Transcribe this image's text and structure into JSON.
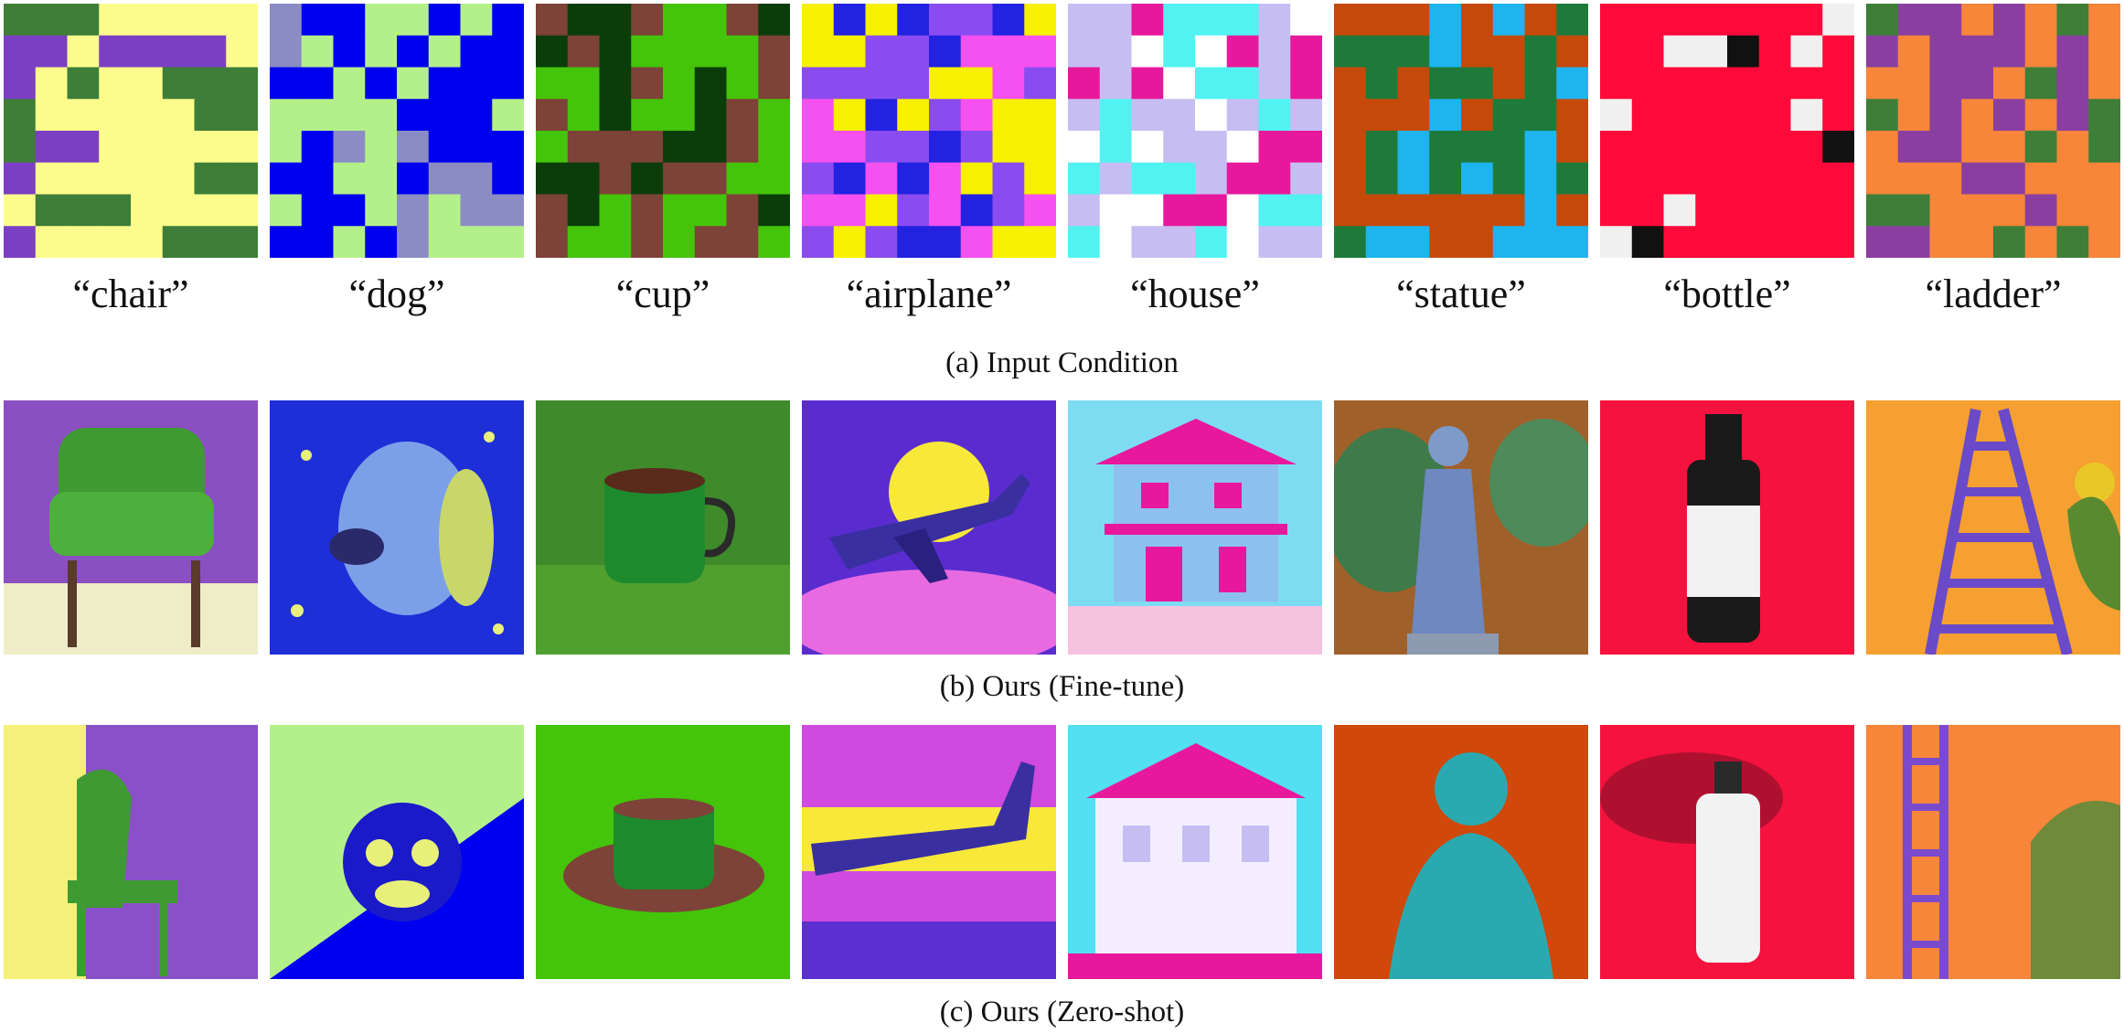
{
  "captions": {
    "input": "(a) Input Condition",
    "finetune": "(b) Ours (Fine-tune)",
    "zeroshot": "(c) Ours (Zero-shot)"
  },
  "columns": [
    {
      "prompt": "“chair”",
      "palette": [
        "#7B3FC4",
        "#3E7E38",
        "#FCFC8C"
      ],
      "grid": "1112222200200002021221111222221110022222022222112111222202222111"
    },
    {
      "prompt": "“dog”",
      "palette": [
        "#0000F0",
        "#B4F08A",
        "#8C8CC4"
      ],
      "grid": "2001101021010100001010001111000110212000001102201001212200102111"
    },
    {
      "prompt": "“cup”",
      "palette": [
        "#44C40A",
        "#7D4238",
        "#0A3D0A"
      ],
      "grid": "1221001221200001002102011020021001112210221211001201001210010110"
    },
    {
      "prompt": "“airplane”",
      "palette": [
        "#8A4CF0",
        "#F7F000",
        "#F550F0",
        "#2222E0"
      ],
      "grid": "1313003111003222000011202131021122003011032321012210230201033211"
    },
    {
      "prompt": "“house”",
      "palette": [
        "#FFFFFF",
        "#C6BEF2",
        "#52F2F2",
        "#E8189C"
      ],
      "grid": "1132221011020313313022131211012102011033212213311003302220112011"
    },
    {
      "prompt": "“statue”",
      "palette": [
        "#C54A0A",
        "#1E7A3A",
        "#1EB4F0"
      ],
      "grid": "0002020111120010010110120002011001211120012121210000002012200222"
    },
    {
      "prompt": "“bottle”",
      "palette": [
        "#FF0A3A",
        "#F0F0F0",
        "#111111"
      ],
      "grid": "0000000100112010000000001000001000000002000000000010000012000000"
    },
    {
      "prompt": "“ladder”",
      "palette": [
        "#F7853A",
        "#8A3FA0",
        "#3E7E38"
      ],
      "grid": "2110102010111010001102102010101201100202000110002200010011002020"
    }
  ]
}
